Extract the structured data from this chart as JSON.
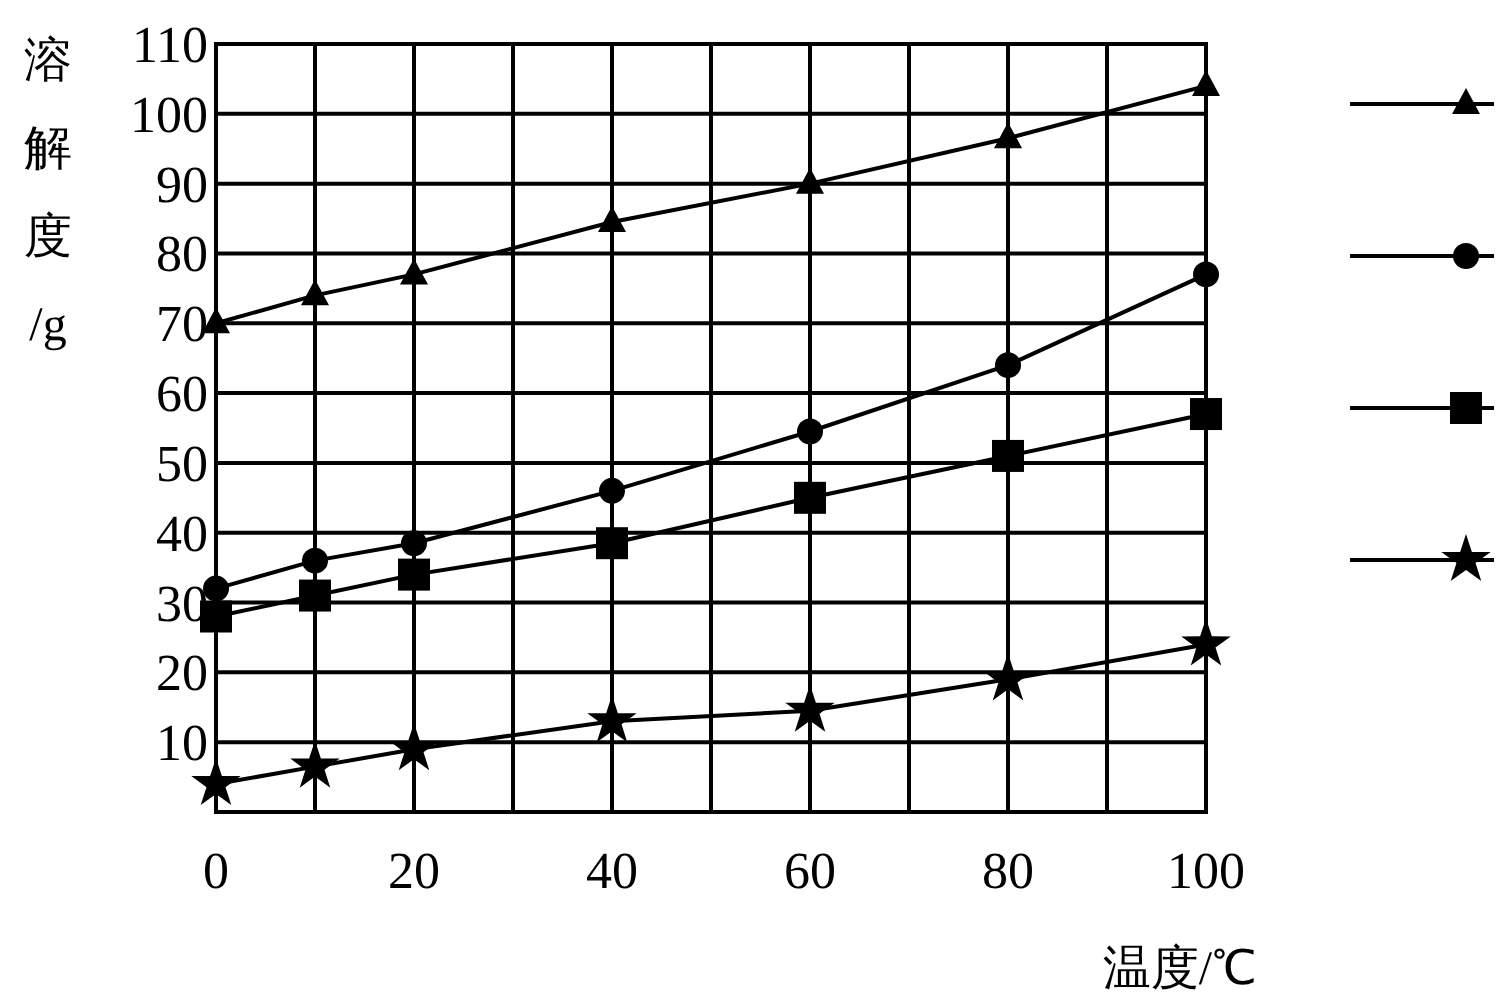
{
  "chart_data": {
    "type": "line",
    "xlabel": "温度/℃",
    "ylabel": "溶解度/g",
    "x": [
      0,
      10,
      20,
      40,
      60,
      80,
      100
    ],
    "xlim": [
      0,
      100
    ],
    "xticks": [
      0,
      {
        "value": 10,
        "label": null
      },
      20,
      {
        "value": 30,
        "label": null
      },
      40,
      {
        "value": 50,
        "label": null
      },
      60,
      {
        "value": 70,
        "label": null
      },
      80,
      {
        "value": 90,
        "label": null
      },
      100
    ],
    "ylim": [
      0,
      110
    ],
    "yticks": [
      10,
      20,
      30,
      40,
      50,
      60,
      70,
      80,
      90,
      100,
      110
    ],
    "grid": true,
    "line_style": "solid",
    "series": [
      {
        "color": "#000000",
        "marker": "triangle",
        "values": [
          70,
          74,
          77,
          84.5,
          90,
          96.5,
          104
        ]
      },
      {
        "color": "#000000",
        "marker": "circle",
        "values": [
          32,
          36,
          38.5,
          46,
          54.5,
          64,
          77
        ]
      },
      {
        "color": "#000000",
        "marker": "square",
        "values": [
          28,
          31,
          34,
          38.5,
          45,
          51,
          57
        ]
      },
      {
        "color": "#000000",
        "marker": "star",
        "values": [
          4,
          6.5,
          9,
          13,
          14.5,
          19,
          24
        ]
      }
    ]
  }
}
